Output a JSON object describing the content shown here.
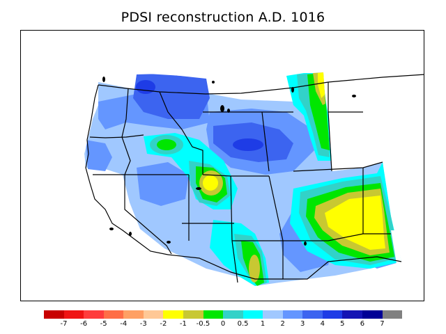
{
  "title": "PDSI reconstruction A.D. 1016",
  "colorbar": {
    "colors": [
      "#c80000",
      "#f01414",
      "#ff3c3c",
      "#ff6e46",
      "#ffa064",
      "#ffc896",
      "#ffff00",
      "#c8c832",
      "#00e600",
      "#32d2c8",
      "#00ffff",
      "#a0c8ff",
      "#6496ff",
      "#3c64f0",
      "#1e3ce6",
      "#1414b4",
      "#000096",
      "#808080"
    ],
    "tick_labels": [
      "-7",
      "-6",
      "-5",
      "-4",
      "-3",
      "-2",
      "-1",
      "-0.5",
      "0",
      "0.5",
      "1",
      "2",
      "3",
      "4",
      "5",
      "6",
      "7"
    ]
  },
  "map": {
    "projection": "conic",
    "region": "Western United States",
    "boundaries": "state borders and coastline, black lines",
    "fill_pattern": "shaded PDSI contours",
    "features": [
      {
        "region": "Northern Idaho / Montana border",
        "level": "4"
      },
      {
        "region": "Eastern Idaho / western Wyoming",
        "level": "4 to 5"
      },
      {
        "region": "Utah-Colorado-Wyoming junction",
        "level": "-1 to 0"
      },
      {
        "region": "Eastern Colorado / Kansas border",
        "level": "-2 to -1"
      },
      {
        "region": "Eastern Montana",
        "level": "-1 to 0"
      },
      {
        "region": "Southern Arizona / New Mexico border",
        "level": "-1 to 0"
      }
    ]
  }
}
